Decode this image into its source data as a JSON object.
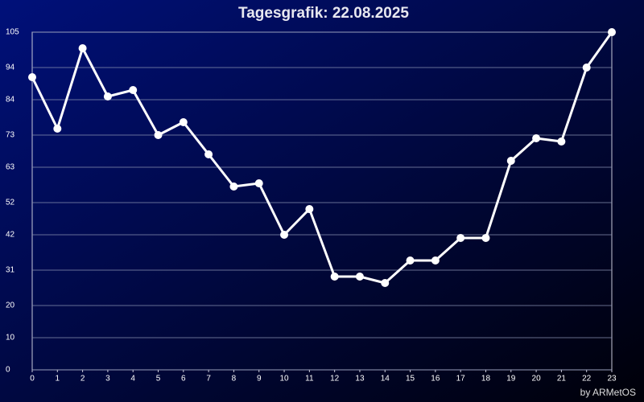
{
  "chart_data": {
    "type": "line",
    "title": "Tagesgrafik: 22.08.2025",
    "footer": "by ARMetOS",
    "x": [
      0,
      1,
      2,
      3,
      4,
      5,
      6,
      7,
      8,
      9,
      10,
      11,
      12,
      13,
      14,
      15,
      16,
      17,
      18,
      19,
      20,
      21,
      22,
      23
    ],
    "series": [
      {
        "color": "#ffffff",
        "values": [
          91,
          75,
          100,
          85,
          87,
          73,
          77,
          67,
          57,
          58,
          42,
          50,
          29,
          29,
          27,
          34,
          34,
          41,
          41,
          65,
          72,
          71,
          94,
          105
        ]
      }
    ],
    "xlim": [
      0,
      23
    ],
    "xticks": [
      0,
      1,
      2,
      3,
      4,
      5,
      6,
      7,
      8,
      9,
      10,
      11,
      12,
      13,
      14,
      15,
      16,
      17,
      18,
      19,
      20,
      21,
      22,
      23
    ],
    "ylim": [
      0,
      105
    ],
    "yticks": [
      0,
      10,
      20,
      31,
      42,
      52,
      63,
      73,
      84,
      94,
      105
    ],
    "grid": true
  }
}
